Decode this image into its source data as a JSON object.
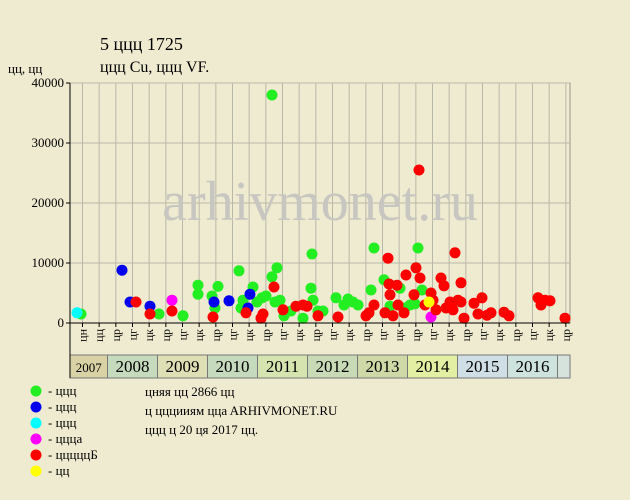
{
  "chart_data": {
    "type": "scatter",
    "title": "5 ццц 1725",
    "subtitle": "ццц Cu, ццц VF.",
    "y_label": "цц, цц",
    "watermark": "arhivmonet.ru",
    "notes": [
      "цняя цц 2866 цц",
      "ц цццииям ццa ARHIVMONET.RU",
      "ццц ц 20 ця 2017 цц."
    ],
    "xlim": [
      2007.25,
      2017.25
    ],
    "ylim": [
      0,
      40000
    ],
    "yticks": [
      0,
      10000,
      20000,
      30000,
      40000
    ],
    "grid": true,
    "xticks": [
      {
        "value": 2007.5,
        "label": "цн"
      },
      {
        "value": 2007.833,
        "label": "цц"
      },
      {
        "value": 2008.167,
        "label": "цр"
      },
      {
        "value": 2008.5,
        "label": "цг"
      },
      {
        "value": 2008.833,
        "label": "цк"
      },
      {
        "value": 2009.167,
        "label": "цр"
      },
      {
        "value": 2009.5,
        "label": "цг"
      },
      {
        "value": 2009.833,
        "label": "цк"
      },
      {
        "value": 2010.167,
        "label": "цр"
      },
      {
        "value": 2010.5,
        "label": "цг"
      },
      {
        "value": 2010.833,
        "label": "цк"
      },
      {
        "value": 2011.167,
        "label": "цр"
      },
      {
        "value": 2011.5,
        "label": "цг"
      },
      {
        "value": 2011.833,
        "label": "цк"
      },
      {
        "value": 2012.167,
        "label": "цр"
      },
      {
        "value": 2012.5,
        "label": "цг"
      },
      {
        "value": 2012.833,
        "label": "цк"
      },
      {
        "value": 2013.167,
        "label": "цр"
      },
      {
        "value": 2013.5,
        "label": "цг"
      },
      {
        "value": 2013.833,
        "label": "цк"
      },
      {
        "value": 2014.167,
        "label": "цр"
      },
      {
        "value": 2014.5,
        "label": "цг"
      },
      {
        "value": 2014.833,
        "label": "цк"
      },
      {
        "value": 2015.167,
        "label": "цр"
      },
      {
        "value": 2015.5,
        "label": "цг"
      },
      {
        "value": 2015.833,
        "label": "цк"
      },
      {
        "value": 2016.167,
        "label": "цр"
      },
      {
        "value": 2016.5,
        "label": "цг"
      },
      {
        "value": 2016.833,
        "label": "цк"
      },
      {
        "value": 2017.167,
        "label": "цр"
      }
    ],
    "years": [
      2007,
      2008,
      2009,
      2010,
      2011,
      2012,
      2013,
      2014,
      2015,
      2016
    ],
    "year_colors": [
      "#d9d2a4",
      "#c6dbbd",
      "#dfdfb6",
      "#c6dbbd",
      "#d6e5b0",
      "#c8dbb6",
      "#cfd9a8",
      "#e3efa2",
      "#d0dfe6",
      "#cfe3de"
    ],
    "series": [
      {
        "name": "- ццц",
        "color": "#22ee22",
        "x": [
          2007.47,
          2009.03,
          2009.51,
          2009.81,
          2009.81,
          2010.09,
          2010.21,
          2010.15,
          2010.63,
          2010.71,
          2010.67,
          2010.91,
          2010.99,
          2011.09,
          2011.17,
          2011.29,
          2011.29,
          2011.39,
          2011.35,
          2011.45,
          2011.53,
          2011.67,
          2011.91,
          2012.07,
          2012.09,
          2012.11,
          2012.21,
          2012.31,
          2012.57,
          2012.73,
          2012.81,
          2012.91,
          2013.01,
          2013.27,
          2013.33,
          2013.53,
          2013.65,
          2013.85,
          2013.95,
          2014.05,
          2014.15,
          2014.21,
          2014.29
        ],
        "values": [
          1500,
          1500,
          1200,
          6300,
          4800,
          4500,
          6100,
          2500,
          8700,
          3800,
          2500,
          6000,
          3500,
          4200,
          4500,
          38000,
          7700,
          9200,
          3500,
          3800,
          1200,
          2000,
          800,
          5800,
          11500,
          3800,
          2000,
          2000,
          4200,
          3000,
          4000,
          3500,
          3000,
          5500,
          12500,
          7200,
          2800,
          5800,
          2500,
          3000,
          3200,
          12500,
          5500
        ]
      },
      {
        "name": "- ццц",
        "color": "#0000ee",
        "x": [
          2008.29,
          2008.45,
          2008.85,
          2010.13,
          2010.43,
          2010.85,
          2010.81
        ],
        "values": [
          8800,
          3500,
          2800,
          3500,
          3700,
          4800,
          2500
        ]
      },
      {
        "name": "- ццц",
        "color": "#00ffff",
        "x": [
          2007.39
        ],
        "values": [
          1700
        ]
      },
      {
        "name": "- ццца",
        "color": "#ff00ff",
        "x": [
          2009.29,
          2014.47
        ],
        "values": [
          3800,
          1000
        ]
      },
      {
        "name": "- цццццБ",
        "color": "#ff0000",
        "x": [
          2008.57,
          2008.85,
          2009.29,
          2010.11,
          2010.77,
          2011.07,
          2011.11,
          2011.33,
          2011.51,
          2011.77,
          2011.91,
          2011.99,
          2012.21,
          2012.61,
          2013.17,
          2013.23,
          2013.33,
          2013.55,
          2013.61,
          2013.63,
          2013.65,
          2013.71,
          2013.79,
          2013.81,
          2013.93,
          2013.97,
          2014.13,
          2014.17,
          2014.23,
          2014.25,
          2014.35,
          2014.47,
          2014.51,
          2014.57,
          2014.67,
          2014.73,
          2014.77,
          2014.85,
          2014.91,
          2014.95,
          2015.01,
          2015.07,
          2015.07,
          2015.13,
          2015.33,
          2015.41,
          2015.49,
          2015.59,
          2015.67,
          2015.93,
          2016.03,
          2016.61,
          2016.67,
          2016.75,
          2016.85,
          2017.15
        ],
        "values": [
          3500,
          1500,
          2000,
          1000,
          1700,
          800,
          1500,
          6000,
          2200,
          2800,
          3000,
          2800,
          1200,
          1000,
          1200,
          1700,
          3000,
          1700,
          10800,
          6500,
          4700,
          1200,
          6300,
          3000,
          1700,
          8000,
          4700,
          9200,
          25500,
          7500,
          3000,
          5000,
          3800,
          2200,
          7500,
          6200,
          2500,
          3500,
          2200,
          11700,
          3800,
          6700,
          3500,
          800,
          3300,
          1500,
          4200,
          1300,
          1700,
          1800,
          1200,
          4200,
          3000,
          3800,
          3700,
          800
        ]
      },
      {
        "name": "- цц",
        "color": "#ffff00",
        "x": [
          2014.43
        ],
        "values": [
          3500
        ]
      }
    ]
  }
}
